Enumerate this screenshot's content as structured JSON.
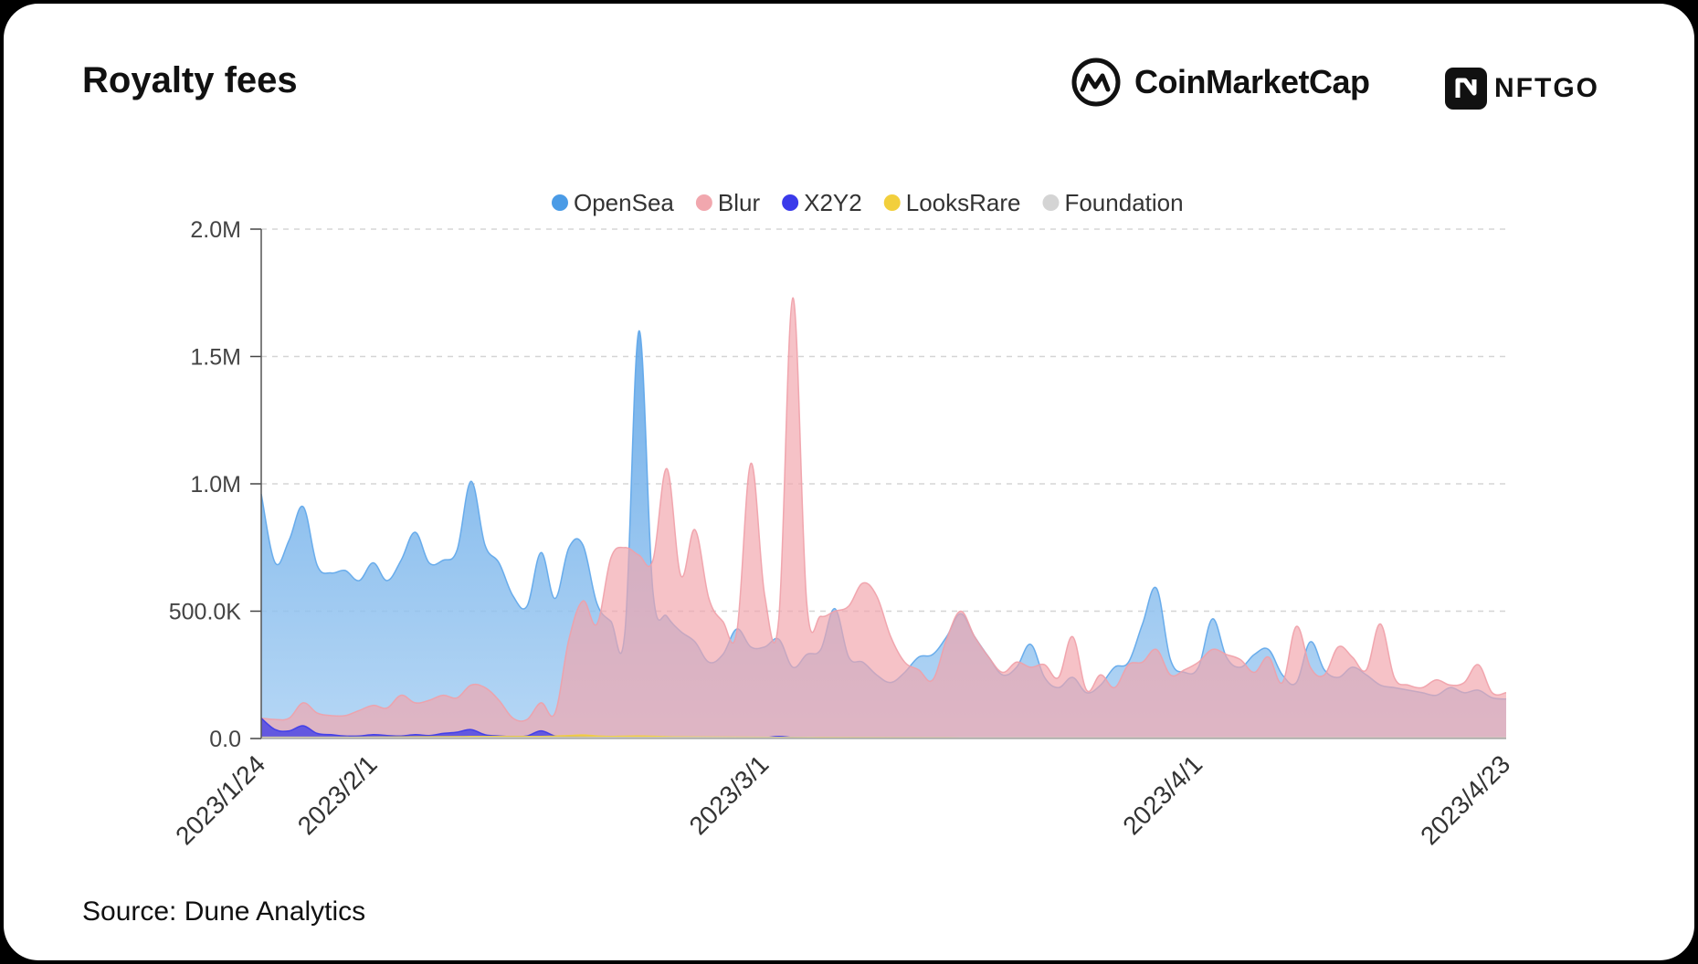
{
  "title": "Royalty fees",
  "brand_cmc": "CoinMarketCap",
  "brand_nftgo": "NFTGO",
  "source": "Source: Dune Analytics",
  "chart_data": {
    "type": "area",
    "title": "Royalty fees",
    "xlabel": "",
    "ylabel": "",
    "ylim": [
      0,
      2000000
    ],
    "yticks": [
      {
        "value": 0,
        "label": "0.0"
      },
      {
        "value": 500000,
        "label": "500.0K"
      },
      {
        "value": 1000000,
        "label": "1.0M"
      },
      {
        "value": 1500000,
        "label": "1.5M"
      },
      {
        "value": 2000000,
        "label": "2.0M"
      }
    ],
    "xticks": [
      {
        "day": 0,
        "label": "2023/1/24"
      },
      {
        "day": 8,
        "label": "2023/2/1"
      },
      {
        "day": 36,
        "label": "2023/3/1"
      },
      {
        "day": 67,
        "label": "2023/4/1"
      },
      {
        "day": 89,
        "label": "2023/4/23"
      }
    ],
    "x_range": [
      0,
      89
    ],
    "legend_position": "top-center",
    "grid": true,
    "series": [
      {
        "name": "OpenSea",
        "color": "#4a9be6",
        "points": [
          [
            0,
            960000
          ],
          [
            1,
            690000
          ],
          [
            2,
            780000
          ],
          [
            3,
            910000
          ],
          [
            4,
            680000
          ],
          [
            5,
            650000
          ],
          [
            6,
            660000
          ],
          [
            7,
            620000
          ],
          [
            8,
            690000
          ],
          [
            9,
            620000
          ],
          [
            10,
            700000
          ],
          [
            11,
            810000
          ],
          [
            12,
            690000
          ],
          [
            13,
            700000
          ],
          [
            14,
            740000
          ],
          [
            15,
            1010000
          ],
          [
            16,
            760000
          ],
          [
            17,
            690000
          ],
          [
            18,
            560000
          ],
          [
            19,
            520000
          ],
          [
            20,
            730000
          ],
          [
            21,
            550000
          ],
          [
            22,
            750000
          ],
          [
            23,
            760000
          ],
          [
            24,
            530000
          ],
          [
            25,
            460000
          ],
          [
            26,
            420000
          ],
          [
            27,
            1600000
          ],
          [
            28,
            580000
          ],
          [
            29,
            480000
          ],
          [
            30,
            420000
          ],
          [
            31,
            380000
          ],
          [
            32,
            300000
          ],
          [
            33,
            330000
          ],
          [
            34,
            430000
          ],
          [
            35,
            360000
          ],
          [
            36,
            360000
          ],
          [
            37,
            390000
          ],
          [
            38,
            280000
          ],
          [
            39,
            330000
          ],
          [
            40,
            350000
          ],
          [
            41,
            510000
          ],
          [
            42,
            320000
          ],
          [
            43,
            300000
          ],
          [
            44,
            250000
          ],
          [
            45,
            220000
          ],
          [
            46,
            260000
          ],
          [
            47,
            320000
          ],
          [
            48,
            330000
          ],
          [
            49,
            400000
          ],
          [
            50,
            490000
          ],
          [
            51,
            400000
          ],
          [
            52,
            320000
          ],
          [
            53,
            250000
          ],
          [
            54,
            280000
          ],
          [
            55,
            370000
          ],
          [
            56,
            240000
          ],
          [
            57,
            200000
          ],
          [
            58,
            240000
          ],
          [
            59,
            180000
          ],
          [
            60,
            210000
          ],
          [
            61,
            280000
          ],
          [
            62,
            300000
          ],
          [
            63,
            450000
          ],
          [
            64,
            590000
          ],
          [
            65,
            310000
          ],
          [
            66,
            260000
          ],
          [
            67,
            280000
          ],
          [
            68,
            470000
          ],
          [
            69,
            320000
          ],
          [
            70,
            280000
          ],
          [
            71,
            330000
          ],
          [
            72,
            350000
          ],
          [
            73,
            250000
          ],
          [
            74,
            220000
          ],
          [
            75,
            380000
          ],
          [
            76,
            270000
          ],
          [
            77,
            240000
          ],
          [
            78,
            280000
          ],
          [
            79,
            250000
          ],
          [
            80,
            210000
          ],
          [
            81,
            200000
          ],
          [
            82,
            190000
          ],
          [
            83,
            180000
          ],
          [
            84,
            170000
          ],
          [
            85,
            200000
          ],
          [
            86,
            180000
          ],
          [
            87,
            190000
          ],
          [
            88,
            160000
          ],
          [
            89,
            155000
          ]
        ]
      },
      {
        "name": "Blur",
        "color": "#f1a7ae",
        "points": [
          [
            0,
            80000
          ],
          [
            1,
            75000
          ],
          [
            2,
            80000
          ],
          [
            3,
            140000
          ],
          [
            4,
            100000
          ],
          [
            5,
            90000
          ],
          [
            6,
            90000
          ],
          [
            7,
            110000
          ],
          [
            8,
            130000
          ],
          [
            9,
            120000
          ],
          [
            10,
            170000
          ],
          [
            11,
            140000
          ],
          [
            12,
            150000
          ],
          [
            13,
            170000
          ],
          [
            14,
            160000
          ],
          [
            15,
            210000
          ],
          [
            16,
            200000
          ],
          [
            17,
            150000
          ],
          [
            18,
            80000
          ],
          [
            19,
            75000
          ],
          [
            20,
            140000
          ],
          [
            21,
            100000
          ],
          [
            22,
            390000
          ],
          [
            23,
            540000
          ],
          [
            24,
            450000
          ],
          [
            25,
            710000
          ],
          [
            26,
            750000
          ],
          [
            27,
            720000
          ],
          [
            28,
            700000
          ],
          [
            29,
            1060000
          ],
          [
            30,
            640000
          ],
          [
            31,
            820000
          ],
          [
            32,
            550000
          ],
          [
            33,
            460000
          ],
          [
            34,
            420000
          ],
          [
            35,
            1080000
          ],
          [
            36,
            560000
          ],
          [
            37,
            470000
          ],
          [
            38,
            1730000
          ],
          [
            39,
            530000
          ],
          [
            40,
            480000
          ],
          [
            41,
            500000
          ],
          [
            42,
            520000
          ],
          [
            43,
            610000
          ],
          [
            44,
            560000
          ],
          [
            45,
            400000
          ],
          [
            46,
            300000
          ],
          [
            47,
            270000
          ],
          [
            48,
            230000
          ],
          [
            49,
            390000
          ],
          [
            50,
            500000
          ],
          [
            51,
            400000
          ],
          [
            52,
            320000
          ],
          [
            53,
            260000
          ],
          [
            54,
            300000
          ],
          [
            55,
            280000
          ],
          [
            56,
            290000
          ],
          [
            57,
            240000
          ],
          [
            58,
            400000
          ],
          [
            59,
            190000
          ],
          [
            60,
            250000
          ],
          [
            61,
            200000
          ],
          [
            62,
            290000
          ],
          [
            63,
            300000
          ],
          [
            64,
            350000
          ],
          [
            65,
            250000
          ],
          [
            66,
            270000
          ],
          [
            67,
            300000
          ],
          [
            68,
            350000
          ],
          [
            69,
            330000
          ],
          [
            70,
            310000
          ],
          [
            71,
            260000
          ],
          [
            72,
            320000
          ],
          [
            73,
            220000
          ],
          [
            74,
            440000
          ],
          [
            75,
            280000
          ],
          [
            76,
            250000
          ],
          [
            77,
            360000
          ],
          [
            78,
            320000
          ],
          [
            79,
            270000
          ],
          [
            80,
            450000
          ],
          [
            81,
            240000
          ],
          [
            82,
            210000
          ],
          [
            83,
            200000
          ],
          [
            84,
            230000
          ],
          [
            85,
            210000
          ],
          [
            86,
            220000
          ],
          [
            87,
            290000
          ],
          [
            88,
            180000
          ],
          [
            89,
            180000
          ]
        ]
      },
      {
        "name": "X2Y2",
        "color": "#3a3aea",
        "points": [
          [
            0,
            80000
          ],
          [
            1,
            35000
          ],
          [
            2,
            30000
          ],
          [
            3,
            50000
          ],
          [
            4,
            20000
          ],
          [
            5,
            15000
          ],
          [
            6,
            10000
          ],
          [
            7,
            10000
          ],
          [
            8,
            15000
          ],
          [
            9,
            12000
          ],
          [
            10,
            10000
          ],
          [
            11,
            15000
          ],
          [
            12,
            12000
          ],
          [
            13,
            20000
          ],
          [
            14,
            25000
          ],
          [
            15,
            35000
          ],
          [
            16,
            15000
          ],
          [
            17,
            10000
          ],
          [
            18,
            8000
          ],
          [
            19,
            10000
          ],
          [
            20,
            30000
          ],
          [
            21,
            10000
          ],
          [
            22,
            8000
          ],
          [
            23,
            6000
          ],
          [
            24,
            5000
          ],
          [
            25,
            5000
          ],
          [
            26,
            4000
          ],
          [
            27,
            5000
          ],
          [
            28,
            4000
          ],
          [
            29,
            4000
          ],
          [
            30,
            3000
          ],
          [
            31,
            3000
          ],
          [
            32,
            3000
          ],
          [
            33,
            3000
          ],
          [
            34,
            3000
          ],
          [
            35,
            3000
          ],
          [
            36,
            3000
          ],
          [
            37,
            8000
          ],
          [
            38,
            4000
          ],
          [
            39,
            3000
          ],
          [
            40,
            3000
          ],
          [
            41,
            3000
          ],
          [
            42,
            3000
          ],
          [
            43,
            3000
          ],
          [
            44,
            3000
          ],
          [
            45,
            3000
          ],
          [
            46,
            3000
          ],
          [
            47,
            3000
          ],
          [
            48,
            3000
          ],
          [
            49,
            3000
          ],
          [
            50,
            3000
          ],
          [
            51,
            3000
          ],
          [
            52,
            3000
          ],
          [
            53,
            3000
          ],
          [
            54,
            3000
          ],
          [
            55,
            3000
          ],
          [
            56,
            3000
          ],
          [
            57,
            3000
          ],
          [
            58,
            3000
          ],
          [
            59,
            3000
          ],
          [
            60,
            3000
          ],
          [
            61,
            3000
          ],
          [
            62,
            3000
          ],
          [
            63,
            3000
          ],
          [
            64,
            3000
          ],
          [
            65,
            3000
          ],
          [
            66,
            3000
          ],
          [
            67,
            3000
          ],
          [
            68,
            3000
          ],
          [
            69,
            3000
          ],
          [
            70,
            3000
          ],
          [
            71,
            3000
          ],
          [
            72,
            3000
          ],
          [
            73,
            3000
          ],
          [
            74,
            3000
          ],
          [
            75,
            3000
          ],
          [
            76,
            3000
          ],
          [
            77,
            3000
          ],
          [
            78,
            3000
          ],
          [
            79,
            3000
          ],
          [
            80,
            3000
          ],
          [
            81,
            3000
          ],
          [
            82,
            3000
          ],
          [
            83,
            3000
          ],
          [
            84,
            3000
          ],
          [
            85,
            3000
          ],
          [
            86,
            3000
          ],
          [
            87,
            3000
          ],
          [
            88,
            3000
          ],
          [
            89,
            3000
          ]
        ]
      },
      {
        "name": "LooksRare",
        "color": "#f2cf3c",
        "points": [
          [
            0,
            5000
          ],
          [
            5,
            5000
          ],
          [
            10,
            6000
          ],
          [
            15,
            8000
          ],
          [
            20,
            8000
          ],
          [
            22,
            12000
          ],
          [
            23,
            14000
          ],
          [
            24,
            10000
          ],
          [
            25,
            8000
          ],
          [
            27,
            10000
          ],
          [
            30,
            6000
          ],
          [
            35,
            5000
          ],
          [
            40,
            4000
          ],
          [
            50,
            3000
          ],
          [
            60,
            3000
          ],
          [
            70,
            3000
          ],
          [
            80,
            3000
          ],
          [
            89,
            3000
          ]
        ]
      },
      {
        "name": "Foundation",
        "color": "#d4d4d4",
        "points": [
          [
            0,
            4000
          ],
          [
            10,
            4000
          ],
          [
            20,
            4000
          ],
          [
            30,
            4000
          ],
          [
            40,
            3000
          ],
          [
            50,
            3000
          ],
          [
            60,
            3000
          ],
          [
            70,
            3000
          ],
          [
            80,
            3000
          ],
          [
            89,
            3000
          ]
        ]
      }
    ]
  }
}
